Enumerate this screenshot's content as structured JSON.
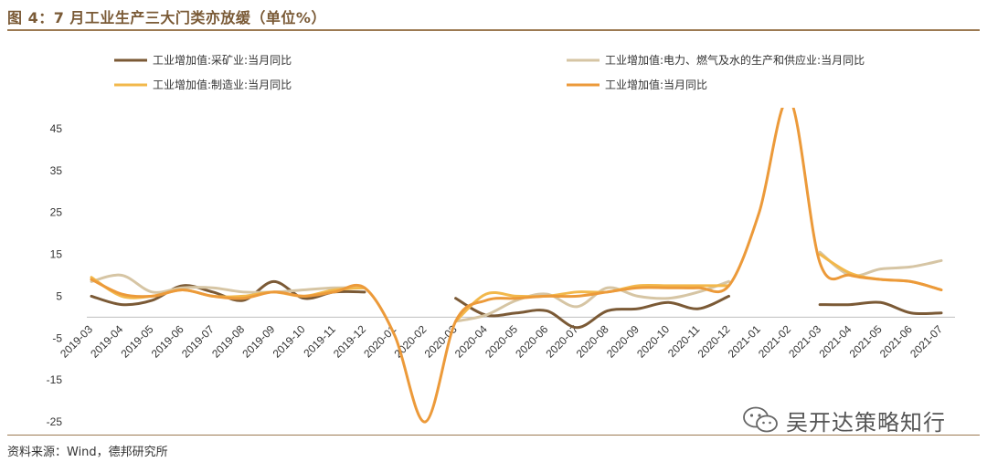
{
  "figure": {
    "title": "图 4：7 月工业生产三大门类亦放缓（单位%）",
    "source": "资料来源：Wind，德邦研究所",
    "watermark": "吴开达策略知行"
  },
  "colors": {
    "mining": "#7b5a36",
    "utilities": "#d6c5a4",
    "manufacturing": "#f2b84b",
    "total": "#ec9a3a",
    "accent": "#9c7a52"
  },
  "chart_data": {
    "type": "line",
    "categories": [
      "2019-03",
      "2019-04",
      "2019-05",
      "2019-06",
      "2019-07",
      "2019-08",
      "2019-09",
      "2019-10",
      "2019-11",
      "2019-12",
      "2020-01",
      "2020-02",
      "2020-03",
      "2020-04",
      "2020-05",
      "2020-06",
      "2020-07",
      "2020-08",
      "2020-09",
      "2020-10",
      "2020-11",
      "2020-12",
      "2021-01",
      "2021-02",
      "2021-03",
      "2021-04",
      "2021-05",
      "2021-06",
      "2021-07"
    ],
    "ylim": [
      -25,
      50
    ],
    "yticks": [
      -25,
      -15,
      -5,
      5,
      15,
      25,
      35,
      45
    ],
    "grid": false,
    "legend_position": "top",
    "series": [
      {
        "name": "工业增加值:采矿业:当月同比",
        "color_key": "mining",
        "values": [
          5.0,
          3.0,
          4.0,
          7.5,
          6.0,
          4.0,
          8.5,
          4.5,
          6.0,
          6.0,
          null,
          null,
          4.5,
          0.5,
          1.0,
          1.5,
          -2.5,
          1.5,
          2.0,
          3.5,
          2.0,
          5.0,
          null,
          null,
          3.0,
          3.0,
          3.5,
          1.0,
          1.0
        ]
      },
      {
        "name": "工业增加值:电力、燃气及水的生产和供应业:当月同比",
        "color_key": "utilities",
        "values": [
          8.5,
          10.0,
          6.0,
          7.0,
          7.0,
          6.0,
          6.0,
          6.5,
          7.0,
          7.0,
          null,
          null,
          -1.0,
          0.5,
          4.0,
          5.5,
          2.5,
          7.0,
          5.0,
          4.5,
          6.0,
          8.5,
          null,
          null,
          15.5,
          10.0,
          11.5,
          12.0,
          13.5
        ]
      },
      {
        "name": "工业增加值:制造业:当月同比",
        "color_key": "manufacturing",
        "values": [
          9.5,
          5.0,
          5.0,
          6.5,
          5.0,
          5.0,
          6.0,
          5.0,
          6.5,
          7.0,
          null,
          null,
          -1.0,
          5.5,
          5.0,
          5.0,
          6.0,
          6.0,
          7.5,
          7.5,
          7.5,
          7.5,
          null,
          null,
          15.0,
          10.5,
          9.0,
          8.5,
          6.5
        ]
      },
      {
        "name": "工业增加值:当月同比",
        "color_key": "total",
        "values": [
          9.0,
          5.5,
          5.0,
          6.5,
          5.0,
          4.5,
          6.0,
          5.0,
          6.0,
          7.0,
          -4.5,
          -25.0,
          -1.0,
          4.0,
          4.5,
          5.0,
          5.0,
          6.0,
          7.0,
          7.0,
          7.0,
          7.5,
          25.0,
          52.0,
          13.0,
          10.0,
          9.0,
          8.5,
          6.5
        ]
      }
    ]
  }
}
